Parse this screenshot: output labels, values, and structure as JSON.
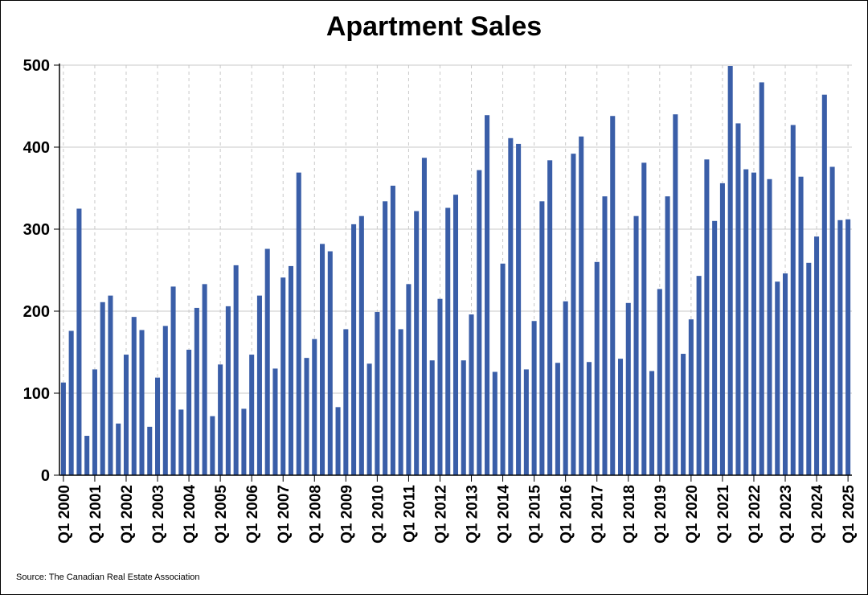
{
  "chart_data": {
    "type": "bar",
    "title": "Apartment Sales",
    "source": "Source: The Canadian Real Estate Association",
    "xlabel": "",
    "ylabel": "",
    "ylim": [
      0,
      500
    ],
    "yticks": [
      0,
      100,
      200,
      300,
      400,
      500
    ],
    "grid": true,
    "bar_color": "#3a5ea8",
    "x_tick_labels": [
      "Q1 2000",
      "Q1 2001",
      "Q1 2002",
      "Q1 2003",
      "Q1 2004",
      "Q1 2005",
      "Q1 2006",
      "Q1 2007",
      "Q1 2008",
      "Q1 2009",
      "Q1 2010",
      "Q1 2011",
      "Q1 2012",
      "Q1 2013",
      "Q1 2014",
      "Q1 2015",
      "Q1 2016",
      "Q1 2017",
      "Q1 2018",
      "Q1 2019",
      "Q1 2020",
      "Q1 2021",
      "Q1 2022",
      "Q1 2023",
      "Q1 2024",
      "Q1 2025"
    ],
    "values": [
      113,
      176,
      325,
      48,
      129,
      211,
      219,
      63,
      147,
      193,
      177,
      59,
      119,
      182,
      230,
      80,
      153,
      204,
      233,
      72,
      135,
      206,
      256,
      81,
      147,
      219,
      276,
      130,
      241,
      255,
      369,
      143,
      166,
      282,
      273,
      83,
      178,
      306,
      316,
      136,
      199,
      334,
      353,
      178,
      233,
      322,
      387,
      140,
      215,
      326,
      342,
      140,
      196,
      372,
      439,
      126,
      258,
      411,
      404,
      129,
      188,
      334,
      384,
      137,
      212,
      392,
      413,
      138,
      260,
      340,
      438,
      142,
      210,
      316,
      381,
      127,
      227,
      340,
      440,
      148,
      190,
      243,
      385,
      310,
      356,
      499,
      429,
      373,
      369,
      479,
      361,
      236,
      246,
      427,
      364,
      259,
      291,
      464,
      376,
      311,
      312
    ]
  }
}
